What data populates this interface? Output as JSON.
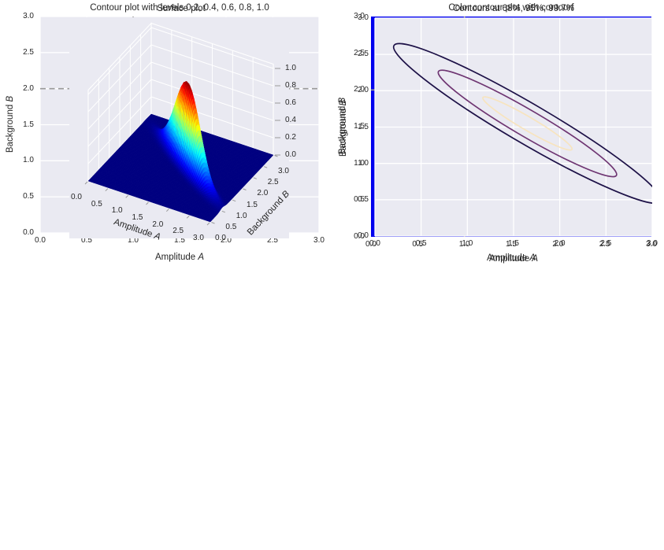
{
  "figure": {
    "background": "#ffffff",
    "text_color": "#262626",
    "style": "seaborn-darkgrid"
  },
  "chart_data": [
    {
      "type": "contour",
      "title": "Contour plot with levels 0.2, 0.4, 0.6, 0.8, 1.0",
      "xlabel": "Amplitude A",
      "ylabel": "Background B",
      "xlabel_text": "Amplitude",
      "xlabel_var": "A",
      "ylabel_text": "Background",
      "ylabel_var": "B",
      "xlim": [
        0,
        3
      ],
      "ylim": [
        0,
        3
      ],
      "xticks": [
        0,
        0.5,
        1.0,
        1.5,
        2.0,
        2.5,
        3.0
      ],
      "yticks": [
        0,
        0.5,
        1.0,
        1.5,
        2.0,
        2.5,
        3.0
      ],
      "grid": true,
      "background": "#eaeaf2",
      "grid_color": "#ffffff",
      "levels": [
        0.2,
        0.4,
        0.6,
        0.8,
        1.0
      ],
      "level_radii_sigma": [
        1.794,
        1.354,
        1.011,
        0.668,
        0
      ],
      "level_colors": [
        "#3b0f70",
        "#8c2981",
        "#de4968",
        "#fe9f6d",
        "#fcfdbf"
      ],
      "gaussian": {
        "center_x": 1.65,
        "center_y": 1.55,
        "sigma_major": 0.6,
        "sigma_minor": 0.085,
        "angle_deg": -36.87,
        "peak": 1.0
      },
      "crosshair": {
        "x": 1.0,
        "y": 2.0,
        "color": "#999999",
        "style": "dashed"
      }
    },
    {
      "type": "contourf",
      "title": "Color contour plot with contourf",
      "xlabel": "Amplitude A",
      "ylabel": "Background B",
      "xlabel_text": "Amplitude",
      "xlabel_var": "A",
      "ylabel_text": "Background",
      "ylabel_var": "B",
      "xlim": [
        0,
        3
      ],
      "ylim": [
        0,
        3
      ],
      "xticks": [
        0,
        0.5,
        1.0,
        1.5,
        2.0,
        2.5,
        3.0
      ],
      "yticks": [
        0,
        0.5,
        1.0,
        1.5,
        2.0,
        2.5,
        3.0
      ],
      "colormap": "jet",
      "fill_levels": [
        0.2,
        0.4,
        0.6,
        0.8,
        1.0
      ],
      "band_radii_sigma": [
        1.794,
        1.354,
        1.011,
        0.668
      ],
      "band_colors": [
        "#00b8ff",
        "#62fb6e",
        "#ffc103",
        "#ea0e01"
      ],
      "background_fill": "#0000ee",
      "gaussian": {
        "center_x": 1.65,
        "center_y": 1.55,
        "sigma_major": 0.6,
        "sigma_minor": 0.085,
        "angle_deg": -36.87,
        "peak": 1.0
      },
      "crosshair": {
        "x": 1.0,
        "y": 2.0,
        "color": "#999999",
        "style": "dashed"
      }
    },
    {
      "type": "surface",
      "title": "Surface plot",
      "xlabel": "Amplitude A",
      "ylabel": "Background B",
      "xlabel_text": "Amplitude",
      "xlabel_var": "A",
      "ylabel_text": "Background",
      "ylabel_var": "B",
      "xlim": [
        0,
        3
      ],
      "ylim": [
        0,
        3
      ],
      "zlim": [
        0,
        1.05
      ],
      "xticks": [
        0,
        0.5,
        1.0,
        1.5,
        2.0,
        2.5,
        3.0
      ],
      "yticks": [
        0,
        0.5,
        1.0,
        1.5,
        2.0,
        2.5,
        3.0
      ],
      "zticks": [
        0,
        0.2,
        0.4,
        0.6,
        0.8,
        1.0
      ],
      "colormap": "jet",
      "pane_color": "#e9e9f1",
      "background": "#eaeaf2",
      "grid_color": "#ffffff",
      "gaussian": {
        "center_x": 1.65,
        "center_y": 1.55,
        "sigma_major": 0.6,
        "sigma_minor": 0.085,
        "angle_deg": -36.87,
        "peak": 1.0
      }
    },
    {
      "type": "contour",
      "title": "Contours at 68%, 95%, 99.7%",
      "xlabel": "Amplitude A",
      "ylabel": "Background B",
      "xlabel_text": "Amplitude",
      "xlabel_var": "A",
      "ylabel_text": "Background",
      "ylabel_var": "B",
      "xlim": [
        0,
        3
      ],
      "ylim": [
        0,
        3
      ],
      "xticks": [
        0,
        0.5,
        1.0,
        1.5,
        2.0,
        2.5,
        3.0
      ],
      "yticks": [
        0,
        0.5,
        1.0,
        1.5,
        2.0,
        2.5,
        3.0
      ],
      "grid": true,
      "background": "#eaeaf2",
      "grid_color": "#ffffff",
      "levels": [
        "68%",
        "95%",
        "99.7%"
      ],
      "level_radii_sigma": [
        1,
        2,
        3
      ],
      "level_colors": [
        "#f7e4bf",
        "#6e3572",
        "#1d1147"
      ],
      "gaussian": {
        "center_x": 1.65,
        "center_y": 1.55,
        "sigma_major": 0.6,
        "sigma_minor": 0.085,
        "angle_deg": -36.87,
        "peak": 1.0
      }
    }
  ]
}
